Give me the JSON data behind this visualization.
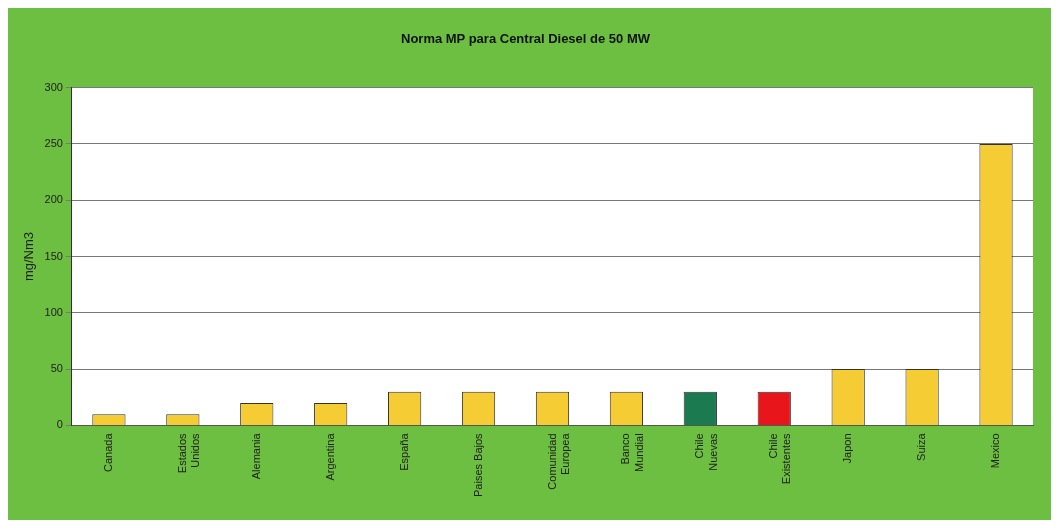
{
  "chart_data": {
    "type": "bar",
    "title": "Norma MP para Central Diesel de 50 MW",
    "ylabel": "mg/Nm3",
    "categories": [
      "Canada",
      "Estados\nUnidos",
      "Alemania",
      "Argentina",
      "España",
      "Paises Bajos",
      "Comunidad\nEuropea",
      "Banco\nMundial",
      "Chile\nNuevas",
      "Chile\nExistentes",
      "Japon",
      "Suiza",
      "Mexico"
    ],
    "values": [
      10,
      10,
      20,
      20,
      30,
      30,
      30,
      30,
      30,
      30,
      50,
      50,
      250
    ],
    "colors": [
      "#f5cc33",
      "#f5cc33",
      "#f5cc33",
      "#f5cc33",
      "#f5cc33",
      "#f5cc33",
      "#f5cc33",
      "#f5cc33",
      "#1c7a50",
      "#e8161a",
      "#f5cc33",
      "#f5cc33",
      "#f5cc33"
    ],
    "ylim": [
      0,
      300
    ],
    "yticks": [
      0,
      50,
      100,
      150,
      200,
      250,
      300
    ],
    "grid": "y",
    "legend": false
  }
}
